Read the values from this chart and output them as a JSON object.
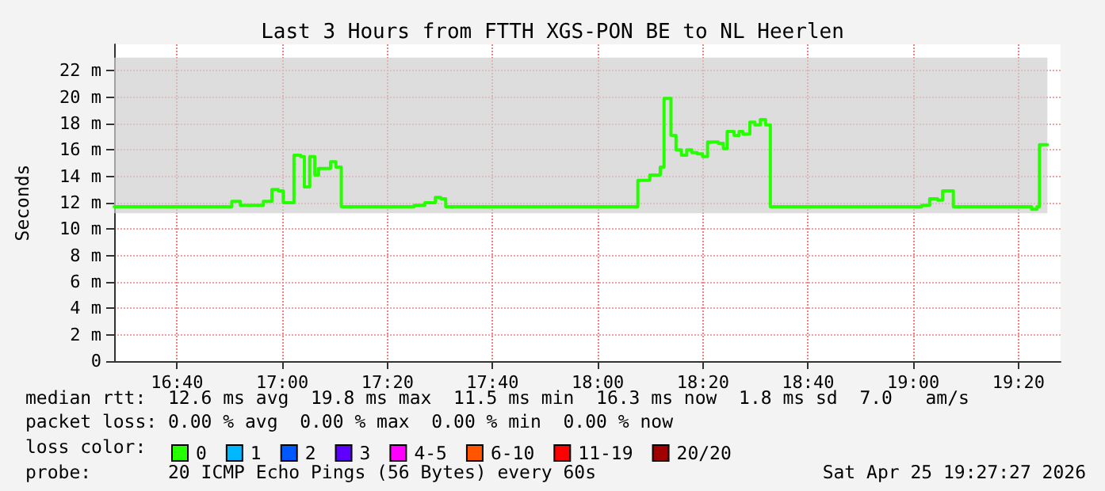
{
  "chart_data": {
    "type": "step",
    "title": "Last 3 Hours from FTTH XGS-PON BE to NL Heerlen",
    "ylabel": "Seconds",
    "legend_title": "loss color:",
    "annotations": [
      "median rtt:  12.6 ms avg  19.8 ms max  11.5 ms min  16.3 ms now  1.8 ms sd  7.0   am/s",
      "packet loss: 0.00 % avg  0.00 % max  0.00 % min  0.00 % now",
      "probe:       20 ICMP Echo Pings (56 Bytes) every 60s",
      "Sat Apr 25 19:27:27 2026"
    ],
    "x": [
      16.467,
      16.84,
      16.867,
      16.94,
      16.967,
      16.987,
      17.003,
      17.037,
      17.058,
      17.07,
      17.087,
      17.103,
      17.115,
      17.153,
      17.17,
      17.187,
      17.418,
      17.452,
      17.485,
      17.502,
      17.518,
      18.127,
      18.165,
      18.198,
      18.21,
      18.232,
      18.248,
      18.265,
      18.282,
      18.298,
      18.315,
      18.332,
      18.348,
      18.382,
      18.398,
      18.41,
      18.432,
      18.448,
      18.46,
      18.482,
      18.498,
      18.515,
      18.532,
      18.547,
      19.027,
      19.052,
      19.077,
      19.093,
      19.127,
      19.375,
      19.392,
      19.4,
      19.425
    ],
    "series": [
      {
        "name": "0",
        "color": "#26ff00",
        "values": [
          11.7,
          12.1,
          11.8,
          12.1,
          13.0,
          12.9,
          12.0,
          15.6,
          15.5,
          13.2,
          15.5,
          14.1,
          14.6,
          15.1,
          14.7,
          11.7,
          11.8,
          12.0,
          12.4,
          12.3,
          11.7,
          13.7,
          14.1,
          14.7,
          19.9,
          17.1,
          16.0,
          15.6,
          16.0,
          15.8,
          15.7,
          15.5,
          16.6,
          16.5,
          16.1,
          17.4,
          17.1,
          17.4,
          17.2,
          18.1,
          17.9,
          18.3,
          17.9,
          11.7,
          11.8,
          12.3,
          12.2,
          12.9,
          11.7,
          11.5,
          11.7,
          16.4,
          16.4
        ],
        "lower": [
          11.2,
          11.2,
          11.2,
          11.2,
          11.2,
          11.2,
          11.2,
          11.2,
          11.2,
          11.2,
          11.2,
          11.2,
          11.2,
          11.2,
          11.2,
          11.2,
          11.2,
          11.2,
          11.2,
          11.2,
          11.2,
          11.2,
          11.2,
          11.2,
          11.2,
          11.2,
          11.2,
          11.2,
          11.2,
          11.2,
          11.2,
          11.2,
          11.2,
          11.2,
          11.2,
          11.2,
          11.2,
          11.2,
          11.2,
          11.2,
          11.2,
          11.2,
          11.2,
          11.2,
          11.2,
          11.2,
          11.2,
          11.2,
          11.2,
          11.2,
          11.2,
          11.2,
          11.2
        ],
        "upper": [
          23,
          23,
          23,
          23,
          23,
          23,
          23,
          23,
          23,
          23,
          23,
          23,
          23,
          23,
          23,
          23,
          23,
          23,
          23,
          23,
          23,
          23,
          23,
          23,
          23,
          23,
          23,
          23,
          23,
          23,
          23,
          23,
          23,
          23,
          23,
          23,
          23,
          23,
          23,
          23,
          23,
          23,
          23,
          23,
          23,
          23,
          23,
          23,
          23,
          23,
          23,
          23,
          23
        ]
      },
      {
        "name": "1",
        "color": "#00b8ff",
        "values": [
          null,
          null,
          null,
          null,
          null,
          null,
          null,
          null,
          null,
          null,
          null,
          null,
          null,
          null,
          null,
          null,
          null,
          null,
          null,
          null,
          null,
          null,
          null,
          null,
          null,
          null,
          null,
          null,
          null,
          null,
          null,
          null,
          null,
          null,
          null,
          null,
          null,
          null,
          null,
          null,
          null,
          null,
          null,
          null,
          null,
          null,
          null,
          null,
          null,
          null,
          null,
          null,
          null
        ]
      },
      {
        "name": "2",
        "color": "#0059ff",
        "values": [
          null,
          null,
          null,
          null,
          null,
          null,
          null,
          null,
          null,
          null,
          null,
          null,
          null,
          null,
          null,
          null,
          null,
          null,
          null,
          null,
          null,
          null,
          null,
          null,
          null,
          null,
          null,
          null,
          null,
          null,
          null,
          null,
          null,
          null,
          null,
          null,
          null,
          null,
          null,
          null,
          null,
          null,
          null,
          null,
          null,
          null,
          null,
          null,
          null,
          null,
          null,
          null,
          null
        ]
      },
      {
        "name": "3",
        "color": "#5e00ff",
        "values": [
          null,
          null,
          null,
          null,
          null,
          null,
          null,
          null,
          null,
          null,
          null,
          null,
          null,
          null,
          null,
          null,
          null,
          null,
          null,
          null,
          null,
          null,
          null,
          null,
          null,
          null,
          null,
          null,
          null,
          null,
          null,
          null,
          null,
          null,
          null,
          null,
          null,
          null,
          null,
          null,
          null,
          null,
          null,
          null,
          null,
          null,
          null,
          null,
          null,
          null,
          null,
          null,
          null
        ]
      },
      {
        "name": "4-5",
        "color": "#ff00ff",
        "values": [
          null,
          null,
          null,
          null,
          null,
          null,
          null,
          null,
          null,
          null,
          null,
          null,
          null,
          null,
          null,
          null,
          null,
          null,
          null,
          null,
          null,
          null,
          null,
          null,
          null,
          null,
          null,
          null,
          null,
          null,
          null,
          null,
          null,
          null,
          null,
          null,
          null,
          null,
          null,
          null,
          null,
          null,
          null,
          null,
          null,
          null,
          null,
          null,
          null,
          null,
          null,
          null,
          null
        ]
      },
      {
        "name": "6-10",
        "color": "#ff5500",
        "values": [
          null,
          null,
          null,
          null,
          null,
          null,
          null,
          null,
          null,
          null,
          null,
          null,
          null,
          null,
          null,
          null,
          null,
          null,
          null,
          null,
          null,
          null,
          null,
          null,
          null,
          null,
          null,
          null,
          null,
          null,
          null,
          null,
          null,
          null,
          null,
          null,
          null,
          null,
          null,
          null,
          null,
          null,
          null,
          null,
          null,
          null,
          null,
          null,
          null,
          null,
          null,
          null,
          null
        ]
      },
      {
        "name": "11-19",
        "color": "#ff0000",
        "values": [
          null,
          null,
          null,
          null,
          null,
          null,
          null,
          null,
          null,
          null,
          null,
          null,
          null,
          null,
          null,
          null,
          null,
          null,
          null,
          null,
          null,
          null,
          null,
          null,
          null,
          null,
          null,
          null,
          null,
          null,
          null,
          null,
          null,
          null,
          null,
          null,
          null,
          null,
          null,
          null,
          null,
          null,
          null,
          null,
          null,
          null,
          null,
          null,
          null,
          null,
          null,
          null,
          null
        ]
      },
      {
        "name": "20/20",
        "color": "#a10000",
        "values": [
          null,
          null,
          null,
          null,
          null,
          null,
          null,
          null,
          null,
          null,
          null,
          null,
          null,
          null,
          null,
          null,
          null,
          null,
          null,
          null,
          null,
          null,
          null,
          null,
          null,
          null,
          null,
          null,
          null,
          null,
          null,
          null,
          null,
          null,
          null,
          null,
          null,
          null,
          null,
          null,
          null,
          null,
          null,
          null,
          null,
          null,
          null,
          null,
          null,
          null,
          null,
          null,
          null
        ]
      }
    ],
    "xlim": [
      16.467,
      19.467
    ],
    "xticks": [
      {
        "value": 16.6667,
        "label": "16:40"
      },
      {
        "value": 17,
        "label": "17:00"
      },
      {
        "value": 17.3333,
        "label": "17:20"
      },
      {
        "value": 17.6667,
        "label": "17:40"
      },
      {
        "value": 18,
        "label": "18:00"
      },
      {
        "value": 18.3333,
        "label": "18:20"
      },
      {
        "value": 18.6667,
        "label": "18:40"
      },
      {
        "value": 19,
        "label": "19:00"
      },
      {
        "value": 19.3333,
        "label": "19:20"
      }
    ],
    "ylim": [
      0,
      24
    ],
    "yticks": [
      0,
      {
        "value": 2,
        "label": "2 m"
      },
      {
        "value": 4,
        "label": "4 m"
      },
      {
        "value": 6,
        "label": "6 m"
      },
      {
        "value": 8,
        "label": "8 m"
      },
      {
        "value": 10,
        "label": "10 m"
      },
      {
        "value": 12,
        "label": "12 m"
      },
      {
        "value": 14,
        "label": "14 m"
      },
      {
        "value": 16,
        "label": "16 m"
      },
      {
        "value": 18,
        "label": "18 m"
      },
      {
        "value": 20,
        "label": "20 m"
      },
      {
        "value": 22,
        "label": "22 m"
      }
    ],
    "grid": true,
    "legend": "bottom",
    "line_style": "solid"
  }
}
